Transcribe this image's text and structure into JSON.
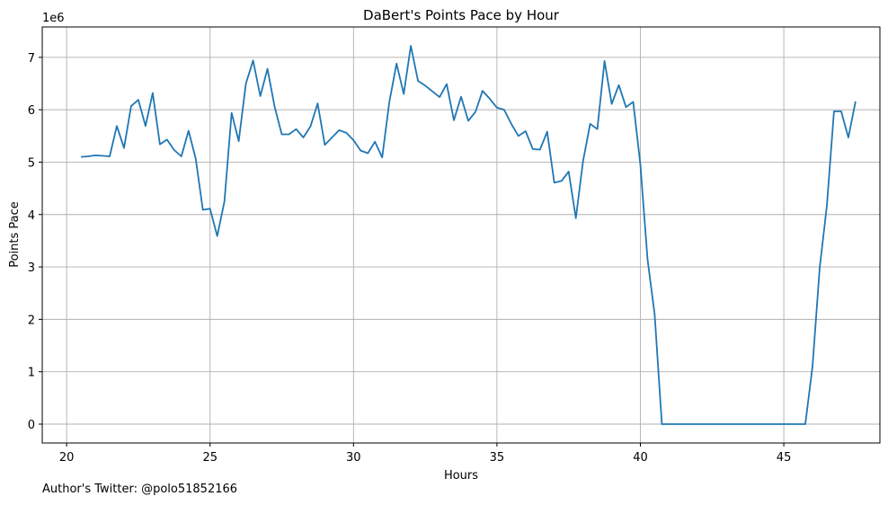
{
  "chart_data": {
    "type": "line",
    "title": "DaBert's Points Pace by Hour",
    "xlabel": "Hours",
    "ylabel": "Points Pace",
    "y_multiplier": "1e6",
    "xlim": [
      19.15,
      48.35
    ],
    "ylim": [
      -0.36,
      7.58
    ],
    "x_ticks": [
      20,
      25,
      30,
      35,
      40,
      45
    ],
    "y_ticks": [
      0,
      1,
      2,
      3,
      4,
      5,
      6,
      7
    ],
    "grid": true,
    "line_color": "#1f77b4",
    "series": [
      {
        "x": [
          20.5,
          20.75,
          21.0,
          21.25,
          21.5,
          21.75,
          22.0,
          22.25,
          22.5,
          22.75,
          23.0,
          23.25,
          23.5,
          23.75,
          24.0,
          24.25,
          24.5,
          24.75,
          25.0,
          25.25,
          25.5,
          25.75,
          26.0,
          26.25,
          26.5,
          26.75,
          27.0,
          27.25,
          27.5,
          27.75,
          28.0,
          28.25,
          28.5,
          28.75,
          29.0,
          29.25,
          29.5,
          29.75,
          30.0,
          30.25,
          30.5,
          30.75,
          31.0,
          31.25,
          31.5,
          31.75,
          32.0,
          32.25,
          32.5,
          32.75,
          33.0,
          33.25,
          33.5,
          33.75,
          34.0,
          34.25,
          34.5,
          34.75,
          35.0,
          35.25,
          35.5,
          35.75,
          36.0,
          36.25,
          36.5,
          36.75,
          37.0,
          37.25,
          37.5,
          37.75,
          38.0,
          38.25,
          38.5,
          38.75,
          39.0,
          39.25,
          39.5,
          39.75,
          40.0,
          40.25,
          40.5,
          40.75,
          41.0,
          41.25,
          41.5,
          41.75,
          42.0,
          42.25,
          42.5,
          42.75,
          43.0,
          43.25,
          43.5,
          43.75,
          44.0,
          44.25,
          44.5,
          44.75,
          45.0,
          45.25,
          45.5,
          45.75,
          46.0,
          46.25,
          46.5,
          46.75,
          47.0,
          47.25,
          47.5
        ],
        "y": [
          5.1,
          5.11,
          5.13,
          5.12,
          5.11,
          5.69,
          5.27,
          6.07,
          6.19,
          5.69,
          6.32,
          5.34,
          5.43,
          5.23,
          5.11,
          5.6,
          5.06,
          4.09,
          4.11,
          3.59,
          4.25,
          5.94,
          5.4,
          6.5,
          6.94,
          6.26,
          6.78,
          6.06,
          5.53,
          5.53,
          5.63,
          5.47,
          5.68,
          6.12,
          5.33,
          5.47,
          5.61,
          5.56,
          5.42,
          5.22,
          5.17,
          5.39,
          5.09,
          6.15,
          6.88,
          6.3,
          7.22,
          6.55,
          6.46,
          6.35,
          6.24,
          6.49,
          5.8,
          6.25,
          5.79,
          5.96,
          6.36,
          6.21,
          6.04,
          6.0,
          5.73,
          5.5,
          5.59,
          5.25,
          5.24,
          5.58,
          4.61,
          4.64,
          4.82,
          3.93,
          5.02,
          5.73,
          5.63,
          6.93,
          6.11,
          6.47,
          6.05,
          6.15,
          4.95,
          3.14,
          2.09,
          0.0,
          0.0,
          0.0,
          0.0,
          0.0,
          0.0,
          0.0,
          0.0,
          0.0,
          0.0,
          0.0,
          0.0,
          0.0,
          0.0,
          0.0,
          0.0,
          0.0,
          0.0,
          0.0,
          0.0,
          0.0,
          1.1,
          2.98,
          4.17,
          5.97,
          5.97,
          5.47,
          6.16
        ]
      }
    ]
  },
  "footer": {
    "text": "Author's Twitter: @polo51852166"
  }
}
